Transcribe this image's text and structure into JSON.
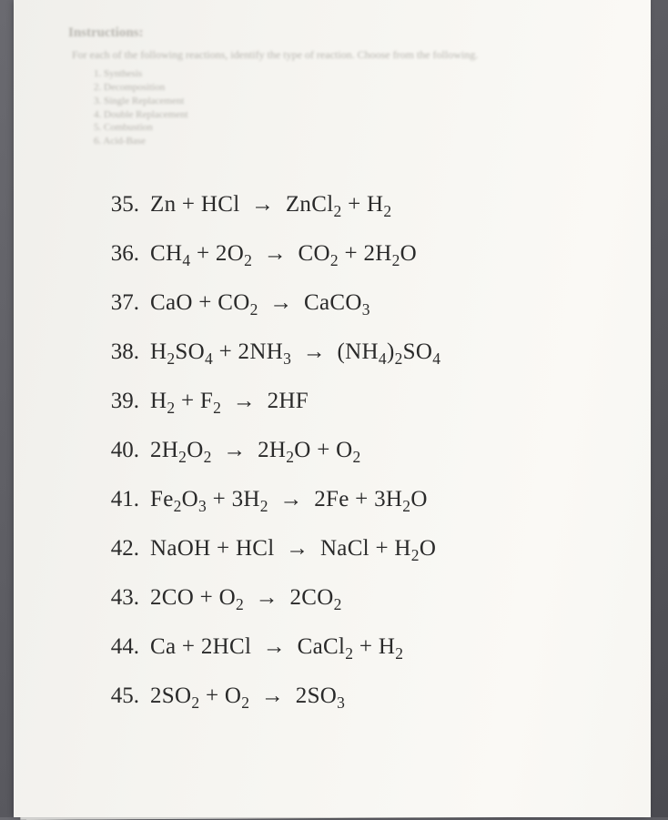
{
  "header": {
    "title": "Instructions:",
    "subtitle": "For each of the following reactions, identify the type of reaction. Choose from the following.",
    "types": [
      "1. Synthesis",
      "2. Decomposition",
      "3. Single Replacement",
      "4. Double Replacement",
      "5. Combustion",
      "6. Acid-Base"
    ]
  },
  "problems": [
    {
      "num": "35.",
      "lhs": [
        [
          "Zn",
          ""
        ],
        [
          "HCl",
          ""
        ]
      ],
      "rhs": [
        [
          "ZnCl",
          "2"
        ],
        [
          "H",
          "2"
        ]
      ]
    },
    {
      "num": "36.",
      "lhs": [
        [
          "CH",
          "4"
        ],
        [
          "2O",
          "2"
        ]
      ],
      "rhs": [
        [
          "CO",
          "2"
        ],
        [
          "2H",
          "2",
          "O"
        ]
      ]
    },
    {
      "num": "37.",
      "lhs": [
        [
          "CaO",
          ""
        ],
        [
          "CO",
          "2"
        ]
      ],
      "rhs": [
        [
          "CaCO",
          "3"
        ]
      ]
    },
    {
      "num": "38.",
      "lhs": [
        [
          "H",
          "2",
          "SO",
          "4"
        ],
        [
          "2NH",
          "3"
        ]
      ],
      "rhs": [
        [
          "(NH",
          "4",
          ")",
          "2",
          "SO",
          "4"
        ]
      ]
    },
    {
      "num": "39.",
      "lhs": [
        [
          "H",
          "2"
        ],
        [
          "F",
          "2"
        ]
      ],
      "rhs": [
        [
          "2HF",
          ""
        ]
      ]
    },
    {
      "num": "40.",
      "lhs": [
        [
          "2H",
          "2",
          "O",
          "2"
        ]
      ],
      "rhs": [
        [
          "2H",
          "2",
          "O"
        ],
        [
          "O",
          "2"
        ]
      ]
    },
    {
      "num": "41.",
      "lhs": [
        [
          "Fe",
          "2",
          "O",
          "3"
        ],
        [
          "3H",
          "2"
        ]
      ],
      "rhs": [
        [
          "2Fe",
          ""
        ],
        [
          "3H",
          "2",
          "O"
        ]
      ]
    },
    {
      "num": "42.",
      "lhs": [
        [
          "NaOH",
          ""
        ],
        [
          "HCl",
          ""
        ]
      ],
      "rhs": [
        [
          "NaCl",
          ""
        ],
        [
          "H",
          "2",
          "O"
        ]
      ]
    },
    {
      "num": "43.",
      "lhs": [
        [
          "2CO",
          ""
        ],
        [
          "O",
          "2"
        ]
      ],
      "rhs": [
        [
          "2CO",
          "2"
        ]
      ]
    },
    {
      "num": "44.",
      "lhs": [
        [
          "Ca",
          ""
        ],
        [
          "2HCl",
          ""
        ]
      ],
      "rhs": [
        [
          "CaCl",
          "2"
        ],
        [
          "H",
          "2"
        ]
      ]
    },
    {
      "num": "45.",
      "lhs": [
        [
          "2SO",
          "2"
        ],
        [
          "O",
          "2"
        ]
      ],
      "rhs": [
        [
          "2SO",
          "3"
        ]
      ]
    }
  ],
  "style": {
    "arrow_glyph": "→",
    "plus_glyph": " + ",
    "problem_fontsize": 25,
    "problem_color": "#2a2a2a",
    "header_color": "#b8b6b0",
    "page_bg": "#f5f4f0"
  }
}
